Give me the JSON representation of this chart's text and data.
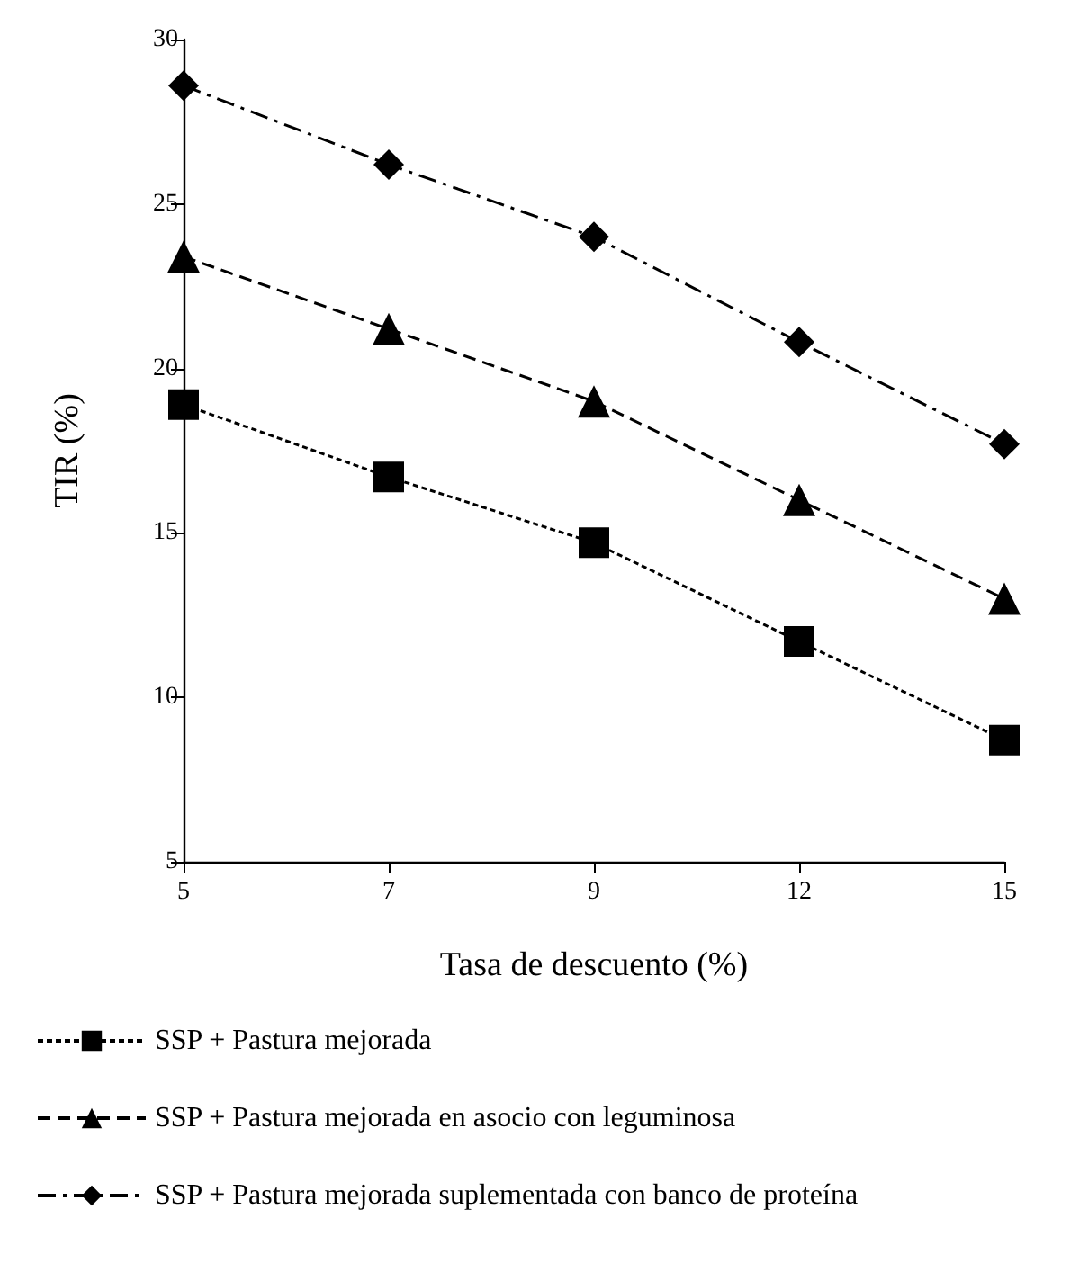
{
  "chart_data": {
    "type": "line",
    "xlabel": "Tasa de descuento (%)",
    "ylabel": "TIR (%)",
    "categories": [
      "5",
      "7",
      "9",
      "12",
      "15"
    ],
    "series": [
      {
        "name": "SSP + Pastura mejorada",
        "color": "#000000",
        "marker": "square",
        "line_style": "dotted",
        "values": [
          18.9,
          16.7,
          14.7,
          11.7,
          8.7
        ]
      },
      {
        "name": "SSP + Pastura mejorada en asocio con leguminosa",
        "color": "#000000",
        "marker": "triangle",
        "line_style": "dashed",
        "values": [
          23.4,
          21.2,
          19.0,
          16.0,
          13.0
        ]
      },
      {
        "name": "SSP + Pastura mejorada suplementada con banco de proteína",
        "color": "#000000",
        "marker": "diamond",
        "line_style": "dashdot",
        "values": [
          28.6,
          26.2,
          24.0,
          20.8,
          17.7
        ]
      }
    ],
    "ylim": [
      5,
      30
    ],
    "yticks": [
      5,
      10,
      15,
      20,
      25,
      30
    ],
    "grid": false,
    "legend": "bottom left"
  }
}
